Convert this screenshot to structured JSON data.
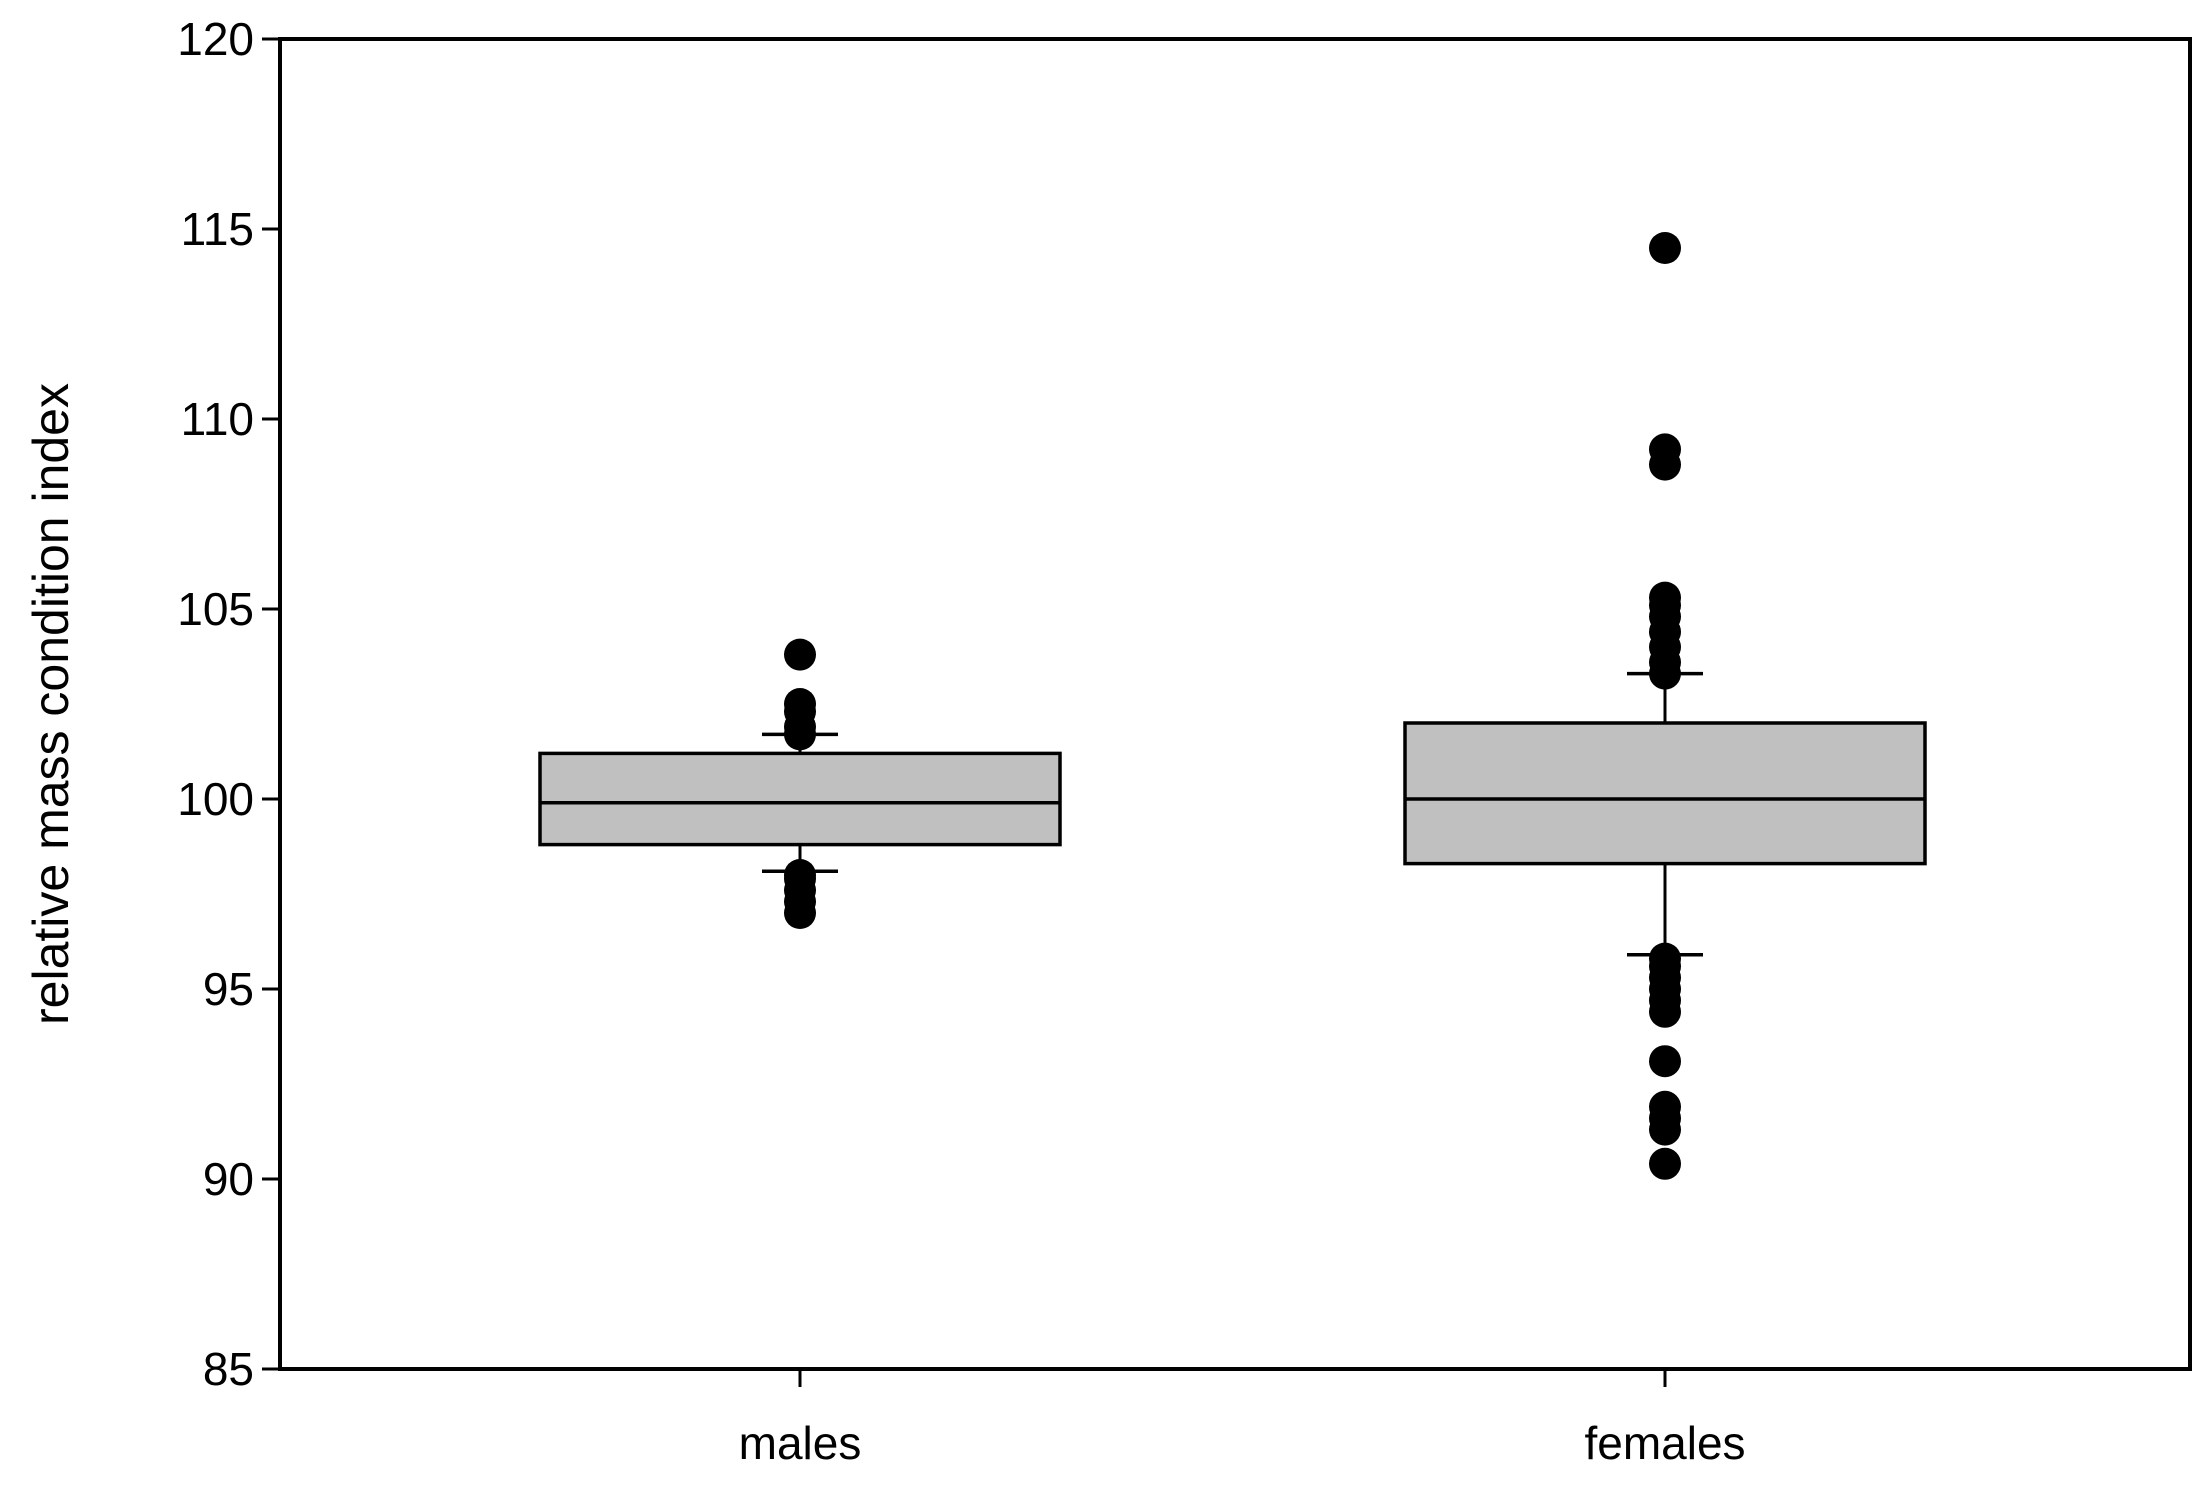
{
  "chart_data": {
    "type": "box",
    "title": "",
    "xlabel": "",
    "ylabel": "relative mass condition index",
    "ylim": [
      85,
      120
    ],
    "yticks": [
      85,
      90,
      95,
      100,
      105,
      110,
      115,
      120
    ],
    "grid": false,
    "legend": "none",
    "categories": [
      "males",
      "females"
    ],
    "colors": {
      "box_fill": "#c0c0c0",
      "stroke": "#000000",
      "outlier": "#000000"
    },
    "series": [
      {
        "category": "males",
        "whisker_low": 98.1,
        "q1": 98.8,
        "median": 99.9,
        "q3": 101.2,
        "whisker_high": 101.7,
        "outliers": [
          97.0,
          97.3,
          97.6,
          97.9,
          98.0,
          101.7,
          101.9,
          102.3,
          102.5,
          103.8
        ]
      },
      {
        "category": "females",
        "whisker_low": 95.9,
        "q1": 98.3,
        "median": 100.0,
        "q3": 102.0,
        "whisker_high": 103.3,
        "outliers": [
          90.4,
          91.3,
          91.6,
          91.9,
          93.1,
          94.4,
          94.7,
          95.0,
          95.3,
          95.6,
          95.8,
          103.3,
          103.6,
          104.0,
          104.4,
          104.8,
          105.1,
          105.3,
          108.8,
          109.2,
          114.5
        ]
      }
    ]
  }
}
